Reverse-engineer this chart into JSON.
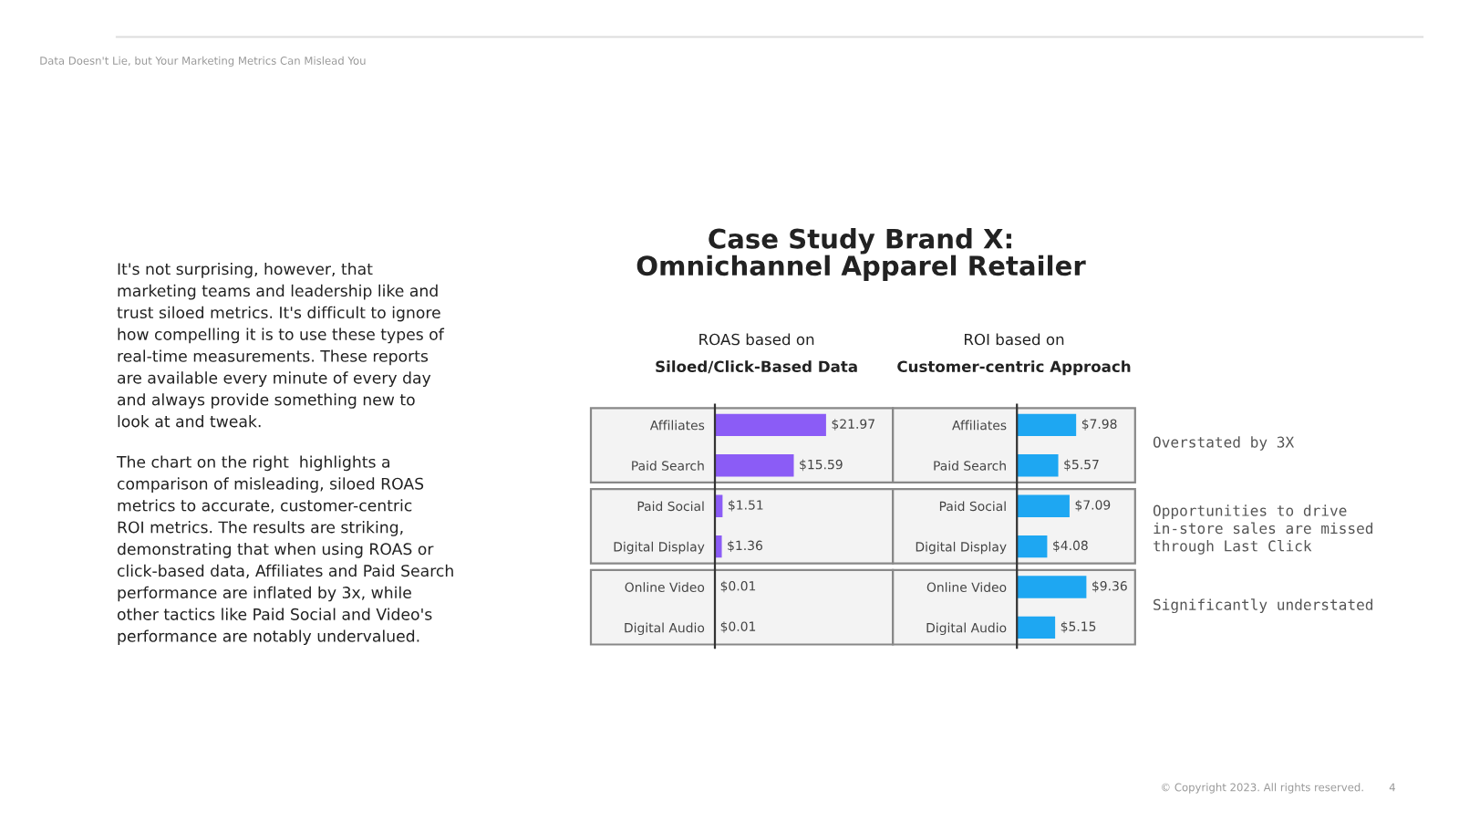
{
  "chart_data": [
    {
      "type": "bar",
      "orientation": "horizontal",
      "title": "Case Study Brand X:\nOmnichannel Apparel Retailer",
      "subtitle": "ROAS based on\nSiloed/Click-Based Data",
      "categories": [
        "Affiliates",
        "Paid Search",
        "Paid Social",
        "Digital Display",
        "Online Video",
        "Digital Audio"
      ],
      "values": [
        21.97,
        15.59,
        1.51,
        1.36,
        0.01,
        0.01
      ],
      "color": "#8b5cf6",
      "value_labels": [
        "$21.97",
        "$15.59",
        "$1.51",
        "$1.36",
        "$0.01",
        "$0.01"
      ],
      "tick_labels": "y",
      "annotations": [
        "Data Doesn't Lie, but Your Marketing Metrics Can Mislead You",
        "It's not surprising, however, that\nmarketing teams and leadership like and\ntrust siloed metrics. It's difficult to ignore\nhow compelling it is to use these types of\nreal-time measurements. These reports\nare available every minute of every day\nand always provide something new to\nlook at and tweak.",
        "The chart on the right  highlights a\ncomparison of misleading, siloed ROAS\nmetrics to accurate, customer-centric\nROI metrics. The results are striking,\ndemonstrating that when using ROAS or\nclick-based data, Affiliates and Paid Search\nperformance are inflated by 3x, while\nother tactics like Paid Social and Video's\nperformance are notably undervalued.",
        "© Copyright 2023. All rights reserved.",
        "4"
      ]
    },
    {
      "type": "bar",
      "orientation": "horizontal",
      "subtitle": "ROI based on\nCustomer-centric Approach",
      "categories": [
        "Affiliates",
        "Paid Search",
        "Paid Social",
        "Digital Display",
        "Online Video",
        "Digital Audio"
      ],
      "values": [
        7.98,
        5.57,
        7.09,
        4.08,
        9.36,
        5.15
      ],
      "color": "#1ea7f2",
      "value_labels": [
        "$7.98",
        "$5.57",
        "$7.09",
        "$4.08",
        "$9.36",
        "$5.15"
      ],
      "tick_labels": "y",
      "annotations": [
        "Overstated by 3X",
        "Opportunities to drive\nin-store sales are missed\nthrough Last Click",
        "Significantly understated"
      ]
    }
  ]
}
